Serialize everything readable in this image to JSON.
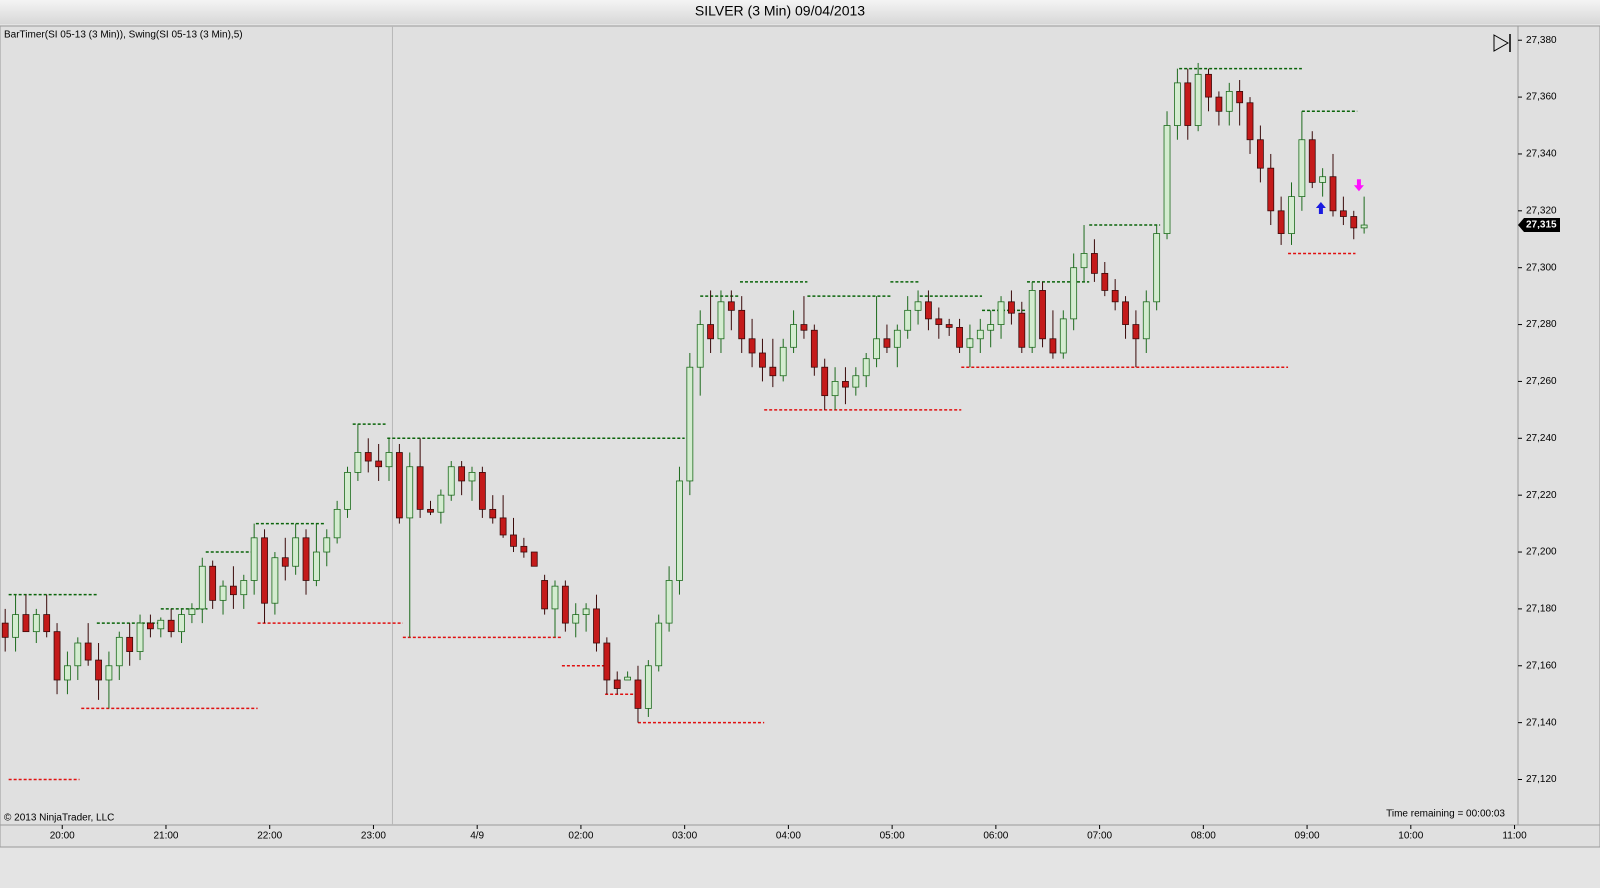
{
  "chart_data": {
    "type": "candlestick",
    "title": "SILVER (3 Min)  09/04/2013",
    "indicator_label": "BarTimer(SI 05-13 (3 Min)), Swing(SI 05-13 (3 Min),5)",
    "copyright": "© 2013 NinjaTrader, LLC",
    "time_remaining": "Time remaining = 00:00:03",
    "up_color": "#d4ecd0",
    "up_border": "#1d6b1d",
    "down_color": "#c41a1a",
    "down_border": "#3a0a0a",
    "xlim": [
      -36,
      842
    ],
    "ylim": [
      27104,
      27385
    ],
    "xticks": [
      {
        "value": 0,
        "label": "20:00"
      },
      {
        "value": 60,
        "label": "21:00"
      },
      {
        "value": 120,
        "label": "22:00"
      },
      {
        "value": 180,
        "label": "23:00"
      },
      {
        "value": 240,
        "label": "4/9"
      },
      {
        "value": 300,
        "label": "02:00"
      },
      {
        "value": 360,
        "label": "03:00"
      },
      {
        "value": 420,
        "label": "04:00"
      },
      {
        "value": 480,
        "label": "05:00"
      },
      {
        "value": 540,
        "label": "06:00"
      },
      {
        "value": 600,
        "label": "07:00"
      },
      {
        "value": 660,
        "label": "08:00"
      },
      {
        "value": 720,
        "label": "09:00"
      },
      {
        "value": 780,
        "label": "10:00"
      },
      {
        "value": 840,
        "label": "11:00"
      }
    ],
    "yticks": [
      {
        "value": 27120,
        "label": "27,120"
      },
      {
        "value": 27140,
        "label": "27,140"
      },
      {
        "value": 27160,
        "label": "27,160"
      },
      {
        "value": 27180,
        "label": "27,180"
      },
      {
        "value": 27200,
        "label": "27,200"
      },
      {
        "value": 27220,
        "label": "27,220"
      },
      {
        "value": 27240,
        "label": "27,240"
      },
      {
        "value": 27260,
        "label": "27,260"
      },
      {
        "value": 27280,
        "label": "27,280"
      },
      {
        "value": 27300,
        "label": "27,300"
      },
      {
        "value": 27320,
        "label": "27,320"
      },
      {
        "value": 27340,
        "label": "27,340"
      },
      {
        "value": 27360,
        "label": "27,360"
      },
      {
        "value": 27380,
        "label": "27,380"
      }
    ],
    "grid": false,
    "session_break_x": 191,
    "x": [
      -33,
      -27,
      -21,
      -15,
      -9,
      -3,
      3,
      9,
      15,
      21,
      27,
      33,
      39,
      45,
      51,
      57,
      63,
      69,
      75,
      81,
      87,
      93,
      99,
      105,
      111,
      117,
      123,
      129,
      135,
      141,
      147,
      153,
      159,
      165,
      171,
      177,
      183,
      189,
      195,
      201,
      207,
      213,
      219,
      225,
      231,
      237,
      243,
      249,
      255,
      261,
      267,
      273,
      279,
      285,
      291,
      297,
      303,
      309,
      315,
      321,
      327,
      333,
      339,
      345,
      351,
      357,
      363,
      369,
      375,
      381,
      387,
      393,
      399,
      405,
      411,
      417,
      423,
      429,
      435,
      441,
      447,
      453,
      459,
      465,
      471,
      477,
      483,
      489,
      495,
      501,
      507,
      513,
      519,
      525,
      531,
      537,
      543,
      549,
      555,
      561,
      567,
      573,
      579,
      585,
      591,
      597,
      603,
      609,
      615,
      621,
      627,
      633,
      639,
      645,
      651,
      657,
      663,
      669,
      675,
      681,
      687,
      693,
      699,
      705,
      711,
      717,
      723,
      729,
      735,
      741,
      747,
      753
    ],
    "open": [
      27175,
      27170,
      27178,
      27172,
      27178,
      27172,
      27155,
      27160,
      27168,
      27162,
      27155,
      27160,
      27170,
      27165,
      27175,
      27173,
      27176,
      27172,
      27178,
      27180,
      27195,
      27183,
      27188,
      27185,
      27190,
      27205,
      27182,
      27198,
      27195,
      27205,
      27190,
      27200,
      27205,
      27215,
      27228,
      27235,
      27232,
      27230,
      27235,
      27212,
      27230,
      27215,
      27214,
      27220,
      27230,
      27225,
      27228,
      27215,
      27212,
      27206,
      27202,
      27200,
      27190,
      27180,
      27188,
      27175,
      27178,
      27180,
      27168,
      27155,
      27155,
      27155,
      27145,
      27160,
      27175,
      27190,
      27225,
      27265,
      27280,
      27275,
      27288,
      27285,
      27275,
      27270,
      27265,
      27262,
      27272,
      27280,
      27278,
      27265,
      27255,
      27260,
      27258,
      27262,
      27268,
      27275,
      27272,
      27278,
      27285,
      27288,
      27282,
      27280,
      27279,
      27272,
      27275,
      27278,
      27280,
      27288,
      27284,
      27272,
      27292,
      27275,
      27270,
      27282,
      27300,
      27305,
      27298,
      27292,
      27288,
      27280,
      27275,
      27288,
      27312,
      27350,
      27365,
      27350,
      27368,
      27360,
      27355,
      27362,
      27358,
      27345,
      27335,
      27320,
      27312,
      27325,
      27345,
      27330,
      27332,
      27320,
      27318,
      27314
    ],
    "high": [
      27180,
      27185,
      27185,
      27180,
      27185,
      27175,
      27165,
      27170,
      27175,
      27168,
      27165,
      27172,
      27175,
      27178,
      27178,
      27177,
      27180,
      27180,
      27182,
      27198,
      27197,
      27190,
      27195,
      27192,
      27210,
      27208,
      27200,
      27205,
      27210,
      27208,
      27210,
      27208,
      27218,
      27230,
      27245,
      27240,
      27238,
      27240,
      27238,
      27235,
      27240,
      27218,
      27222,
      27232,
      27232,
      27230,
      27230,
      27220,
      27220,
      27212,
      27205,
      27200,
      27192,
      27190,
      27190,
      27182,
      27182,
      27185,
      27170,
      27158,
      27158,
      27160,
      27162,
      27178,
      27195,
      27230,
      27270,
      27285,
      27292,
      27292,
      27292,
      27290,
      27282,
      27275,
      27275,
      27275,
      27285,
      27290,
      27280,
      27268,
      27265,
      27265,
      27265,
      27270,
      27290,
      27280,
      27280,
      27290,
      27292,
      27292,
      27286,
      27282,
      27282,
      27280,
      27282,
      27285,
      27290,
      27292,
      27288,
      27295,
      27295,
      27285,
      27285,
      27305,
      27315,
      27310,
      27302,
      27296,
      27290,
      27285,
      27292,
      27315,
      27355,
      27370,
      27370,
      27372,
      27370,
      27362,
      27365,
      27366,
      27360,
      27350,
      27340,
      27325,
      27330,
      27355,
      27348,
      27335,
      27340,
      27325,
      27320,
      27325
    ],
    "low": [
      27165,
      27165,
      27172,
      27168,
      27170,
      27150,
      27150,
      27155,
      27160,
      27148,
      27145,
      27155,
      27160,
      27162,
      27170,
      27170,
      27170,
      27168,
      27175,
      27175,
      27180,
      27178,
      27180,
      27180,
      27185,
      27175,
      27178,
      27190,
      27192,
      27185,
      27188,
      27195,
      27203,
      27212,
      27225,
      27228,
      27225,
      27225,
      27210,
      27170,
      27212,
      27213,
      27210,
      27218,
      27220,
      27218,
      27212,
      27210,
      27205,
      27200,
      27198,
      27195,
      27178,
      27170,
      27172,
      27170,
      27172,
      27165,
      27150,
      27150,
      27155,
      27140,
      27142,
      27158,
      27172,
      27185,
      27220,
      27255,
      27270,
      27270,
      27278,
      27270,
      27265,
      27260,
      27258,
      27260,
      27270,
      27275,
      27262,
      27250,
      27250,
      27252,
      27255,
      27258,
      27265,
      27270,
      27265,
      27275,
      27280,
      27278,
      27275,
      27276,
      27270,
      27265,
      27270,
      27272,
      27275,
      27280,
      27270,
      27270,
      27272,
      27268,
      27268,
      27278,
      27295,
      27295,
      27290,
      27285,
      27275,
      27265,
      27270,
      27285,
      27310,
      27345,
      27345,
      27348,
      27355,
      27350,
      27350,
      27350,
      27340,
      27330,
      27315,
      27308,
      27308,
      27320,
      27328,
      27325,
      27318,
      27315,
      27310,
      27312
    ],
    "close": [
      27170,
      27178,
      27172,
      27178,
      27172,
      27155,
      27160,
      27168,
      27162,
      27155,
      27160,
      27170,
      27165,
      27175,
      27173,
      27176,
      27172,
      27178,
      27180,
      27195,
      27183,
      27188,
      27185,
      27190,
      27205,
      27182,
      27198,
      27195,
      27205,
      27190,
      27200,
      27205,
      27215,
      27228,
      27235,
      27232,
      27230,
      27235,
      27212,
      27230,
      27215,
      27214,
      27220,
      27230,
      27225,
      27228,
      27215,
      27212,
      27206,
      27202,
      27200,
      27195,
      27180,
      27188,
      27175,
      27178,
      27180,
      27168,
      27155,
      27152,
      27156,
      27145,
      27160,
      27175,
      27190,
      27225,
      27265,
      27280,
      27275,
      27288,
      27285,
      27275,
      27270,
      27265,
      27262,
      27272,
      27280,
      27278,
      27265,
      27255,
      27260,
      27258,
      27262,
      27268,
      27275,
      27272,
      27278,
      27285,
      27288,
      27282,
      27280,
      27279,
      27272,
      27275,
      27278,
      27280,
      27288,
      27284,
      27272,
      27292,
      27275,
      27270,
      27282,
      27300,
      27305,
      27298,
      27292,
      27288,
      27280,
      27275,
      27288,
      27312,
      27350,
      27365,
      27350,
      27368,
      27360,
      27355,
      27362,
      27358,
      27345,
      27335,
      27320,
      27312,
      27325,
      27345,
      27330,
      27332,
      27320,
      27318,
      27314,
      27315
    ],
    "swing_high_color": "#0a640a",
    "swing_low_color": "#e01010",
    "swing_highs": [
      {
        "start": -31,
        "end": 20,
        "value": 27185
      },
      {
        "start": 20,
        "end": 57,
        "value": 27175
      },
      {
        "start": 57,
        "end": 84,
        "value": 27180
      },
      {
        "start": 83,
        "end": 112,
        "value": 27200
      },
      {
        "start": 112,
        "end": 152,
        "value": 27210
      },
      {
        "start": 168,
        "end": 187,
        "value": 27245
      },
      {
        "start": 188,
        "end": 360,
        "value": 27240
      },
      {
        "start": 369,
        "end": 392,
        "value": 27290
      },
      {
        "start": 392,
        "end": 431,
        "value": 27295
      },
      {
        "start": 431,
        "end": 479,
        "value": 27290
      },
      {
        "start": 479,
        "end": 496,
        "value": 27295
      },
      {
        "start": 496,
        "end": 532,
        "value": 27290
      },
      {
        "start": 532,
        "end": 558,
        "value": 27285
      },
      {
        "start": 558,
        "end": 594,
        "value": 27295
      },
      {
        "start": 594,
        "end": 635,
        "value": 27315
      },
      {
        "start": 646,
        "end": 717,
        "value": 27370
      },
      {
        "start": 717,
        "end": 749,
        "value": 27355
      }
    ],
    "swing_lows": [
      {
        "start": -31,
        "end": 10,
        "value": 27120
      },
      {
        "start": 11,
        "end": 113,
        "value": 27145
      },
      {
        "start": 113,
        "end": 197,
        "value": 27175
      },
      {
        "start": 197,
        "end": 289,
        "value": 27170
      },
      {
        "start": 289,
        "end": 314,
        "value": 27160
      },
      {
        "start": 314,
        "end": 333,
        "value": 27150
      },
      {
        "start": 333,
        "end": 406,
        "value": 27140
      },
      {
        "start": 406,
        "end": 520,
        "value": 27250
      },
      {
        "start": 520,
        "end": 709,
        "value": 27265
      },
      {
        "start": 709,
        "end": 748,
        "value": 27305
      }
    ],
    "signals": [
      {
        "x": 728,
        "y": 27321,
        "dir": "up",
        "color": "#1a1ae0"
      },
      {
        "x": 750,
        "y": 27329,
        "dir": "down",
        "color": "#ff10ff"
      }
    ],
    "last_price": {
      "value": 27315,
      "label": "27,315"
    }
  }
}
